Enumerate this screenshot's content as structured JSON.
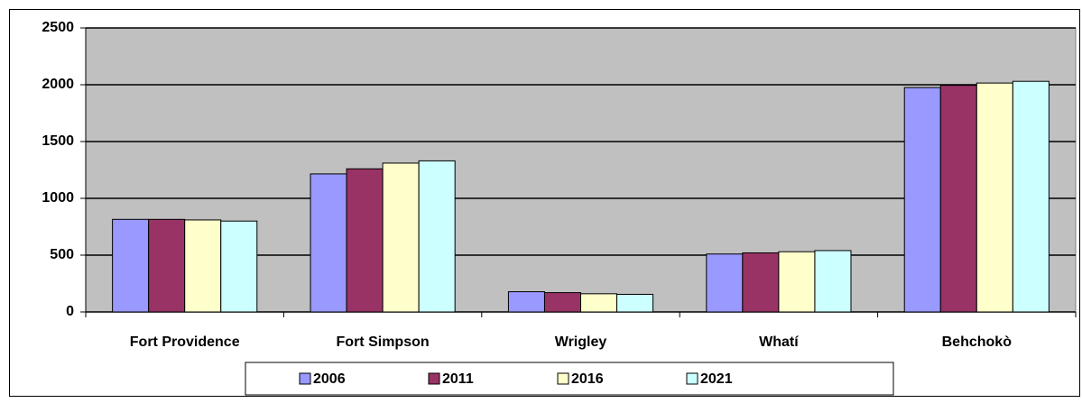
{
  "chart_data": {
    "type": "bar",
    "categories": [
      "Fort Providence",
      "Fort Simpson",
      "Wrigley",
      "Whatí",
      "Behchokò"
    ],
    "series": [
      {
        "name": "2006",
        "color": "#9999ff",
        "values": [
          815,
          1215,
          178,
          510,
          1975
        ]
      },
      {
        "name": "2011",
        "color": "#993366",
        "values": [
          815,
          1260,
          170,
          520,
          1995
        ]
      },
      {
        "name": "2016",
        "color": "#ffffcc",
        "values": [
          810,
          1310,
          160,
          530,
          2015
        ]
      },
      {
        "name": "2021",
        "color": "#ccffff",
        "values": [
          800,
          1330,
          155,
          540,
          2030
        ]
      }
    ],
    "ylim": [
      0,
      2500
    ],
    "yticks": [
      0,
      500,
      1000,
      1500,
      2000,
      2500
    ],
    "grid": true,
    "legend": "bottom"
  }
}
